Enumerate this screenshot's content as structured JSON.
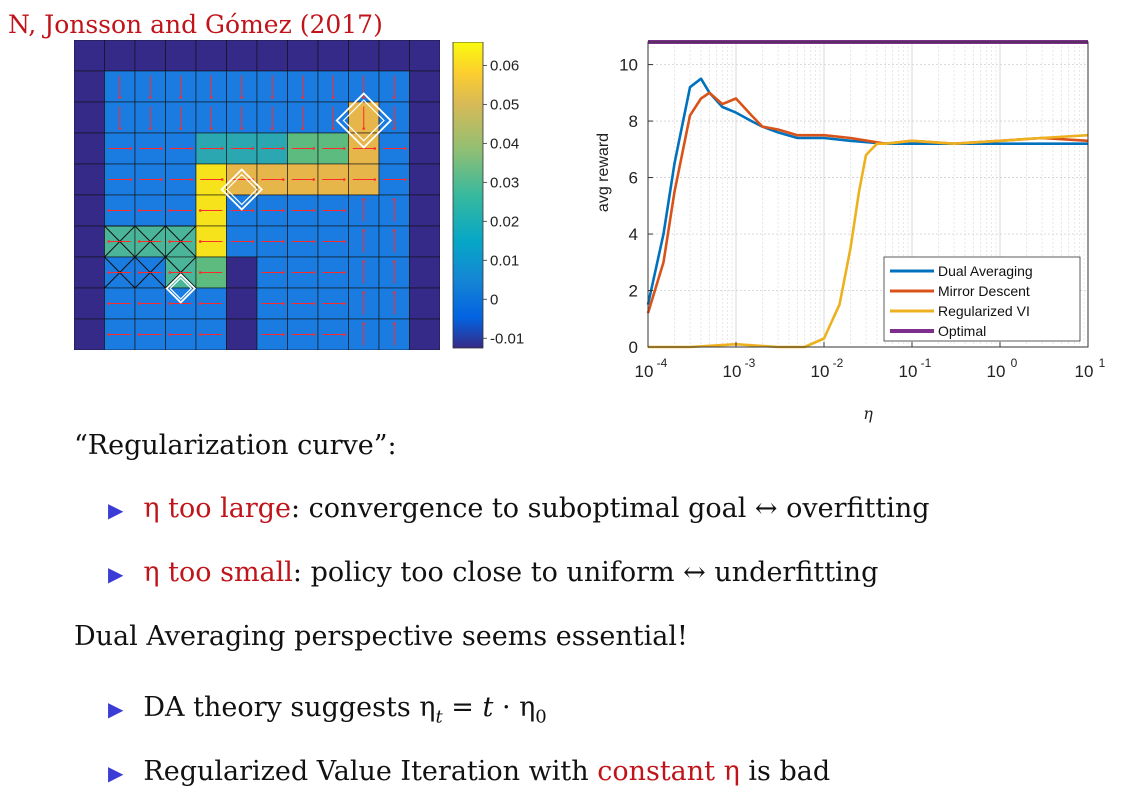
{
  "citation": "N, Jonsson and Gómez (2017)",
  "heatmap": {
    "colorbar_ticks": [
      "0.06",
      "0.05",
      "0.04",
      "0.03",
      "0.02",
      "0.01",
      "0",
      "-0.01"
    ],
    "colorbar_values": [
      0.06,
      0.05,
      0.04,
      0.03,
      0.02,
      0.01,
      0,
      -0.01
    ],
    "colors": {
      "low": "#352a87",
      "mid": "#0f7ee3",
      "high": "#f9fb0e"
    }
  },
  "chart_data": {
    "type": "line",
    "xlabel": "η",
    "ylabel": "avg reward",
    "xscale": "log",
    "xlim": [
      0.0001,
      10
    ],
    "ylim": [
      0,
      10.8
    ],
    "x_ticks": [
      "10",
      "10",
      "10",
      "10",
      "10",
      "10"
    ],
    "x_tick_exponents": [
      "-4",
      "-3",
      "-2",
      "-1",
      "0",
      "1"
    ],
    "y_ticks": [
      "0",
      "2",
      "4",
      "6",
      "8",
      "10"
    ],
    "grid": true,
    "legend_position": "lower-right",
    "series": [
      {
        "name": "Dual Averaging",
        "color": "#0072bd",
        "x": [
          0.0001,
          0.00015,
          0.0002,
          0.0003,
          0.0004,
          0.0005,
          0.0007,
          0.001,
          0.0015,
          0.002,
          0.003,
          0.005,
          0.01,
          0.02,
          0.05,
          0.1,
          0.3,
          1,
          3,
          10
        ],
        "y": [
          1.5,
          4.0,
          6.5,
          9.2,
          9.5,
          9.0,
          8.5,
          8.3,
          8.0,
          7.8,
          7.6,
          7.4,
          7.4,
          7.3,
          7.2,
          7.2,
          7.2,
          7.2,
          7.2,
          7.2
        ]
      },
      {
        "name": "Mirror Descent",
        "color": "#d95319",
        "x": [
          0.0001,
          0.00015,
          0.0002,
          0.0003,
          0.0004,
          0.0005,
          0.0007,
          0.001,
          0.0015,
          0.002,
          0.003,
          0.005,
          0.01,
          0.02,
          0.05,
          0.1,
          0.3,
          1,
          3,
          10
        ],
        "y": [
          1.2,
          3.0,
          5.5,
          8.2,
          8.8,
          9.0,
          8.6,
          8.8,
          8.2,
          7.8,
          7.7,
          7.5,
          7.5,
          7.4,
          7.2,
          7.3,
          7.2,
          7.3,
          7.4,
          7.3
        ]
      },
      {
        "name": "Regularized VI",
        "color": "#edb120",
        "x": [
          0.0001,
          0.0003,
          0.001,
          0.003,
          0.006,
          0.01,
          0.015,
          0.02,
          0.025,
          0.03,
          0.04,
          0.05,
          0.1,
          0.3,
          1,
          3,
          10
        ],
        "y": [
          0.0,
          0.0,
          0.1,
          0.0,
          0.0,
          0.3,
          1.5,
          3.5,
          5.5,
          6.8,
          7.2,
          7.2,
          7.3,
          7.2,
          7.3,
          7.4,
          7.5
        ]
      },
      {
        "name": "Optimal",
        "color": "#7e2f8e",
        "x": [
          0.0001,
          10
        ],
        "y": [
          10.8,
          10.8
        ]
      }
    ]
  },
  "bullets1_intro": "“Regularization curve”:",
  "bullet1a": {
    "highlight": "η too large",
    "rest": ": convergence to suboptimal goal ↔ overfitting"
  },
  "bullet1b": {
    "highlight": "η too small",
    "rest": ": policy too close to uniform ↔ underfitting"
  },
  "para2": "Dual Averaging perspective seems essential!",
  "bullet2a": {
    "text": "DA theory suggests ",
    "eta": "η",
    "sub_t": "t",
    "eq": " = ",
    "t": "t",
    "dot": " · ",
    "eta0": "η",
    "sub0": "0"
  },
  "bullet2b": {
    "pre": "Regularized Value Iteration with ",
    "highlight": "constant η",
    "post": " is bad"
  },
  "bullet_marker": "▶"
}
